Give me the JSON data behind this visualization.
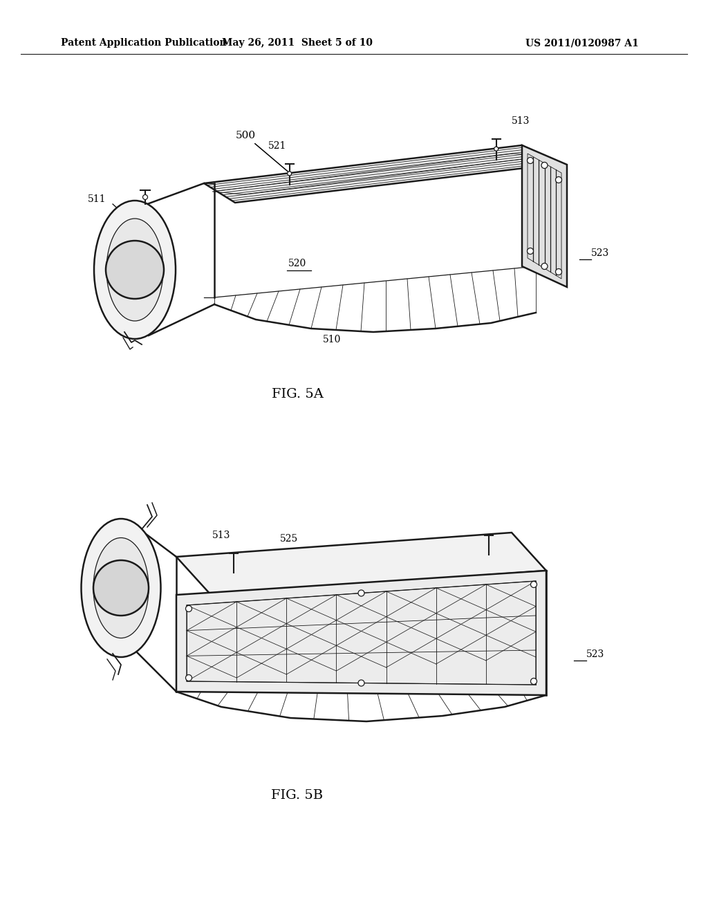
{
  "background_color": "#ffffff",
  "page_width": 10.24,
  "page_height": 13.2,
  "header_left": "Patent Application Publication",
  "header_center": "May 26, 2011  Sheet 5 of 10",
  "header_right": "US 2011/0120987 A1",
  "fig5a_label": "FIG. 5A",
  "fig5b_label": "FIG. 5B",
  "line_color": "#1a1a1a",
  "label_color": "#000000",
  "font_size_header": 10,
  "font_size_label": 14,
  "font_size_ref": 10
}
